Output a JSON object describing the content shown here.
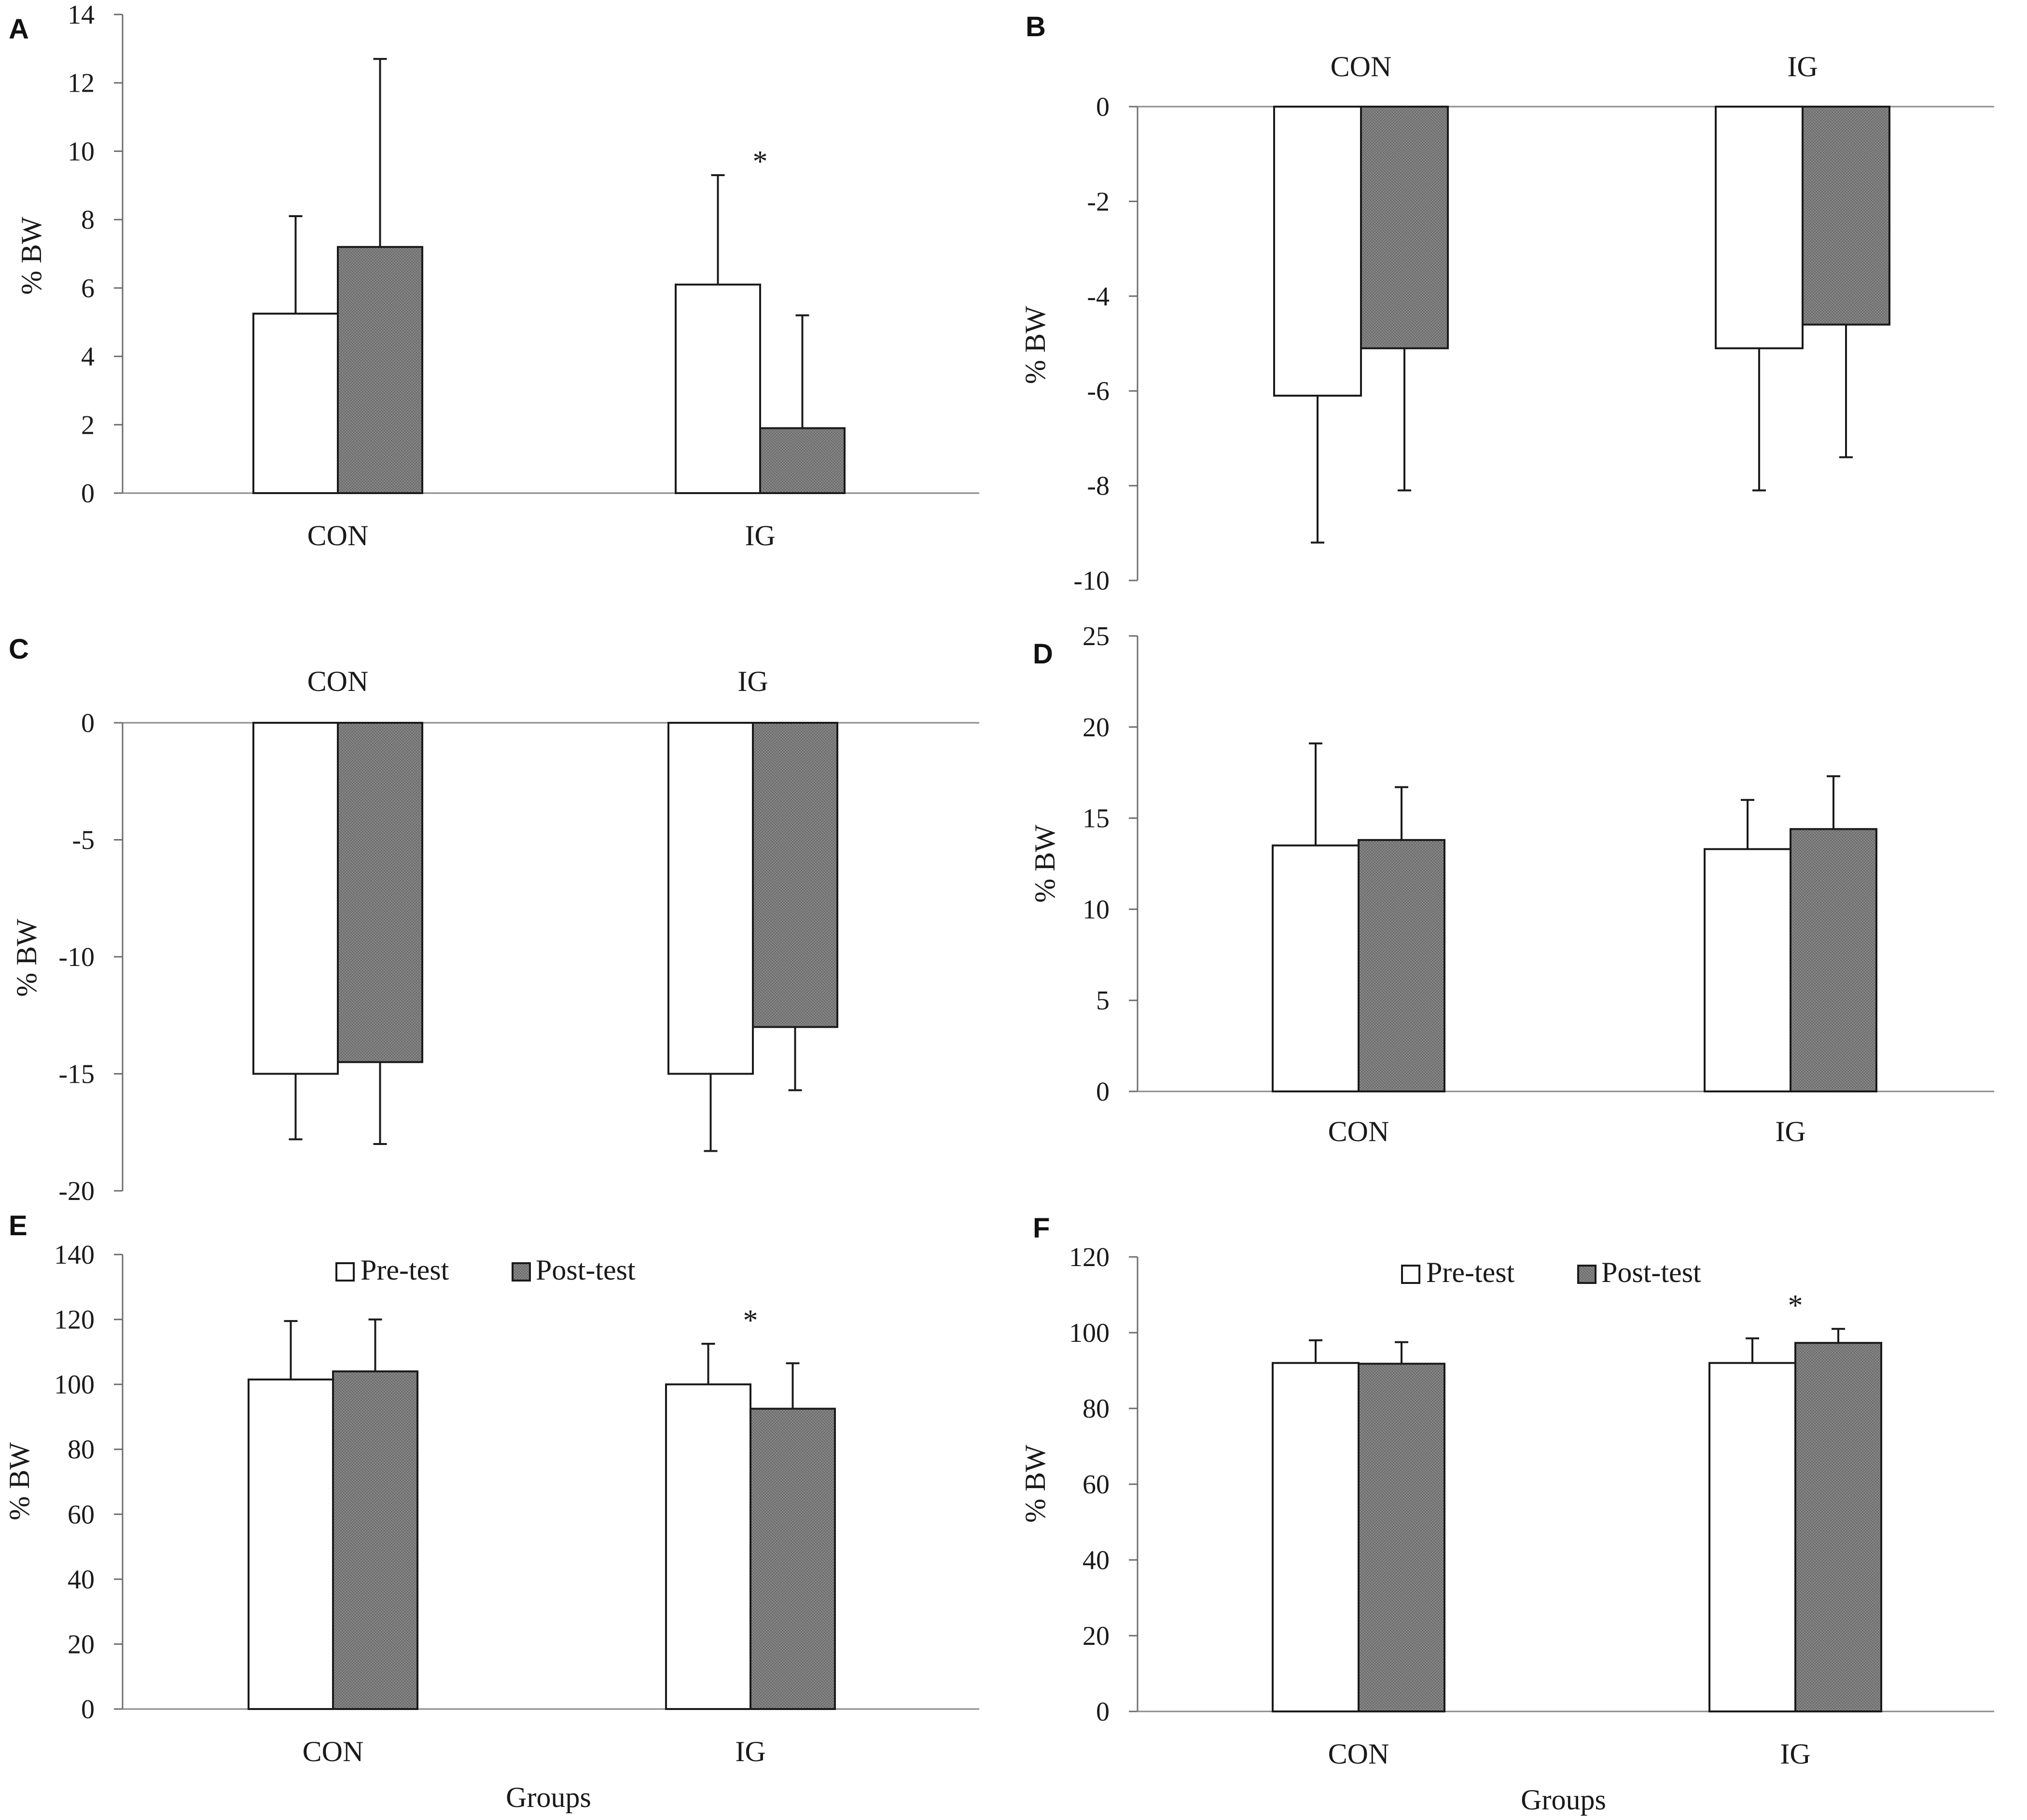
{
  "legend": {
    "pre_label": "Pre-test",
    "post_label": "Post-test"
  },
  "chart_data": [
    {
      "panel": "A",
      "type": "bar",
      "orientation": "bars-up",
      "categories": [
        "CON",
        "IG"
      ],
      "category_position": "bottom",
      "ylabel": "% BW",
      "xlabel": "",
      "ylim": [
        0,
        14
      ],
      "yticks": [
        0,
        2,
        4,
        6,
        8,
        10,
        12,
        14
      ],
      "series": [
        {
          "name": "Pre-test",
          "values": [
            5.25,
            6.1
          ],
          "errors": [
            2.85,
            3.2
          ]
        },
        {
          "name": "Post-test",
          "values": [
            7.2,
            1.9
          ],
          "errors": [
            5.5,
            3.3
          ]
        }
      ],
      "significance": [
        {
          "category": "IG",
          "label": "*"
        }
      ],
      "legend": false
    },
    {
      "panel": "B",
      "type": "bar",
      "orientation": "bars-down",
      "categories": [
        "CON",
        "IG"
      ],
      "category_position": "top",
      "ylabel": "% BW",
      "xlabel": "",
      "ylim": [
        -10,
        0
      ],
      "yticks": [
        0,
        -2,
        -4,
        -6,
        -8,
        -10
      ],
      "series": [
        {
          "name": "Pre-test",
          "values": [
            -6.1,
            -5.1
          ],
          "errors": [
            3.1,
            3.0
          ]
        },
        {
          "name": "Post-test",
          "values": [
            -5.1,
            -4.6
          ],
          "errors": [
            3.0,
            2.8
          ]
        }
      ],
      "significance": [],
      "legend": false
    },
    {
      "panel": "C",
      "type": "bar",
      "orientation": "bars-down",
      "categories": [
        "CON",
        "IG"
      ],
      "category_position": "top",
      "ylabel": "% BW",
      "xlabel": "",
      "ylim": [
        -20,
        0
      ],
      "yticks": [
        0,
        -5,
        -10,
        -15,
        -20
      ],
      "series": [
        {
          "name": "Pre-test",
          "values": [
            -15.0,
            -15.0
          ],
          "errors": [
            2.8,
            3.3
          ]
        },
        {
          "name": "Post-test",
          "values": [
            -14.5,
            -13.0
          ],
          "errors": [
            3.5,
            2.7
          ]
        }
      ],
      "significance": [],
      "legend": false
    },
    {
      "panel": "D",
      "type": "bar",
      "orientation": "bars-up",
      "categories": [
        "CON",
        "IG"
      ],
      "category_position": "bottom",
      "ylabel": "% BW",
      "xlabel": "",
      "ylim": [
        0,
        25
      ],
      "yticks": [
        0,
        5,
        10,
        15,
        20,
        25
      ],
      "series": [
        {
          "name": "Pre-test",
          "values": [
            13.5,
            13.3
          ],
          "errors": [
            5.6,
            2.7
          ]
        },
        {
          "name": "Post-test",
          "values": [
            13.8,
            14.4
          ],
          "errors": [
            2.9,
            2.9
          ]
        }
      ],
      "significance": [],
      "legend": false
    },
    {
      "panel": "E",
      "type": "bar",
      "orientation": "bars-up",
      "categories": [
        "CON",
        "IG"
      ],
      "category_position": "bottom",
      "ylabel": "% BW",
      "xlabel": "Groups",
      "ylim": [
        0,
        140
      ],
      "yticks": [
        0,
        20,
        40,
        60,
        80,
        100,
        120,
        140
      ],
      "series": [
        {
          "name": "Pre-test",
          "values": [
            101.5,
            100.0
          ],
          "errors": [
            18.0,
            12.5
          ]
        },
        {
          "name": "Post-test",
          "values": [
            104.0,
            92.5
          ],
          "errors": [
            16.0,
            14.0
          ]
        }
      ],
      "significance": [
        {
          "category": "IG",
          "label": "*"
        }
      ],
      "legend": true
    },
    {
      "panel": "F",
      "type": "bar",
      "orientation": "bars-up",
      "categories": [
        "CON",
        "IG"
      ],
      "category_position": "bottom",
      "ylabel": "% BW",
      "xlabel": "Groups",
      "ylim": [
        0,
        120
      ],
      "yticks": [
        0,
        20,
        40,
        60,
        80,
        100,
        120
      ],
      "series": [
        {
          "name": "Pre-test",
          "values": [
            92.0,
            92.0
          ],
          "errors": [
            6.0,
            6.5
          ]
        },
        {
          "name": "Post-test",
          "values": [
            91.8,
            97.3
          ],
          "errors": [
            5.7,
            3.7
          ]
        }
      ],
      "significance": [
        {
          "category": "IG",
          "label": "*"
        }
      ],
      "legend": true
    }
  ]
}
